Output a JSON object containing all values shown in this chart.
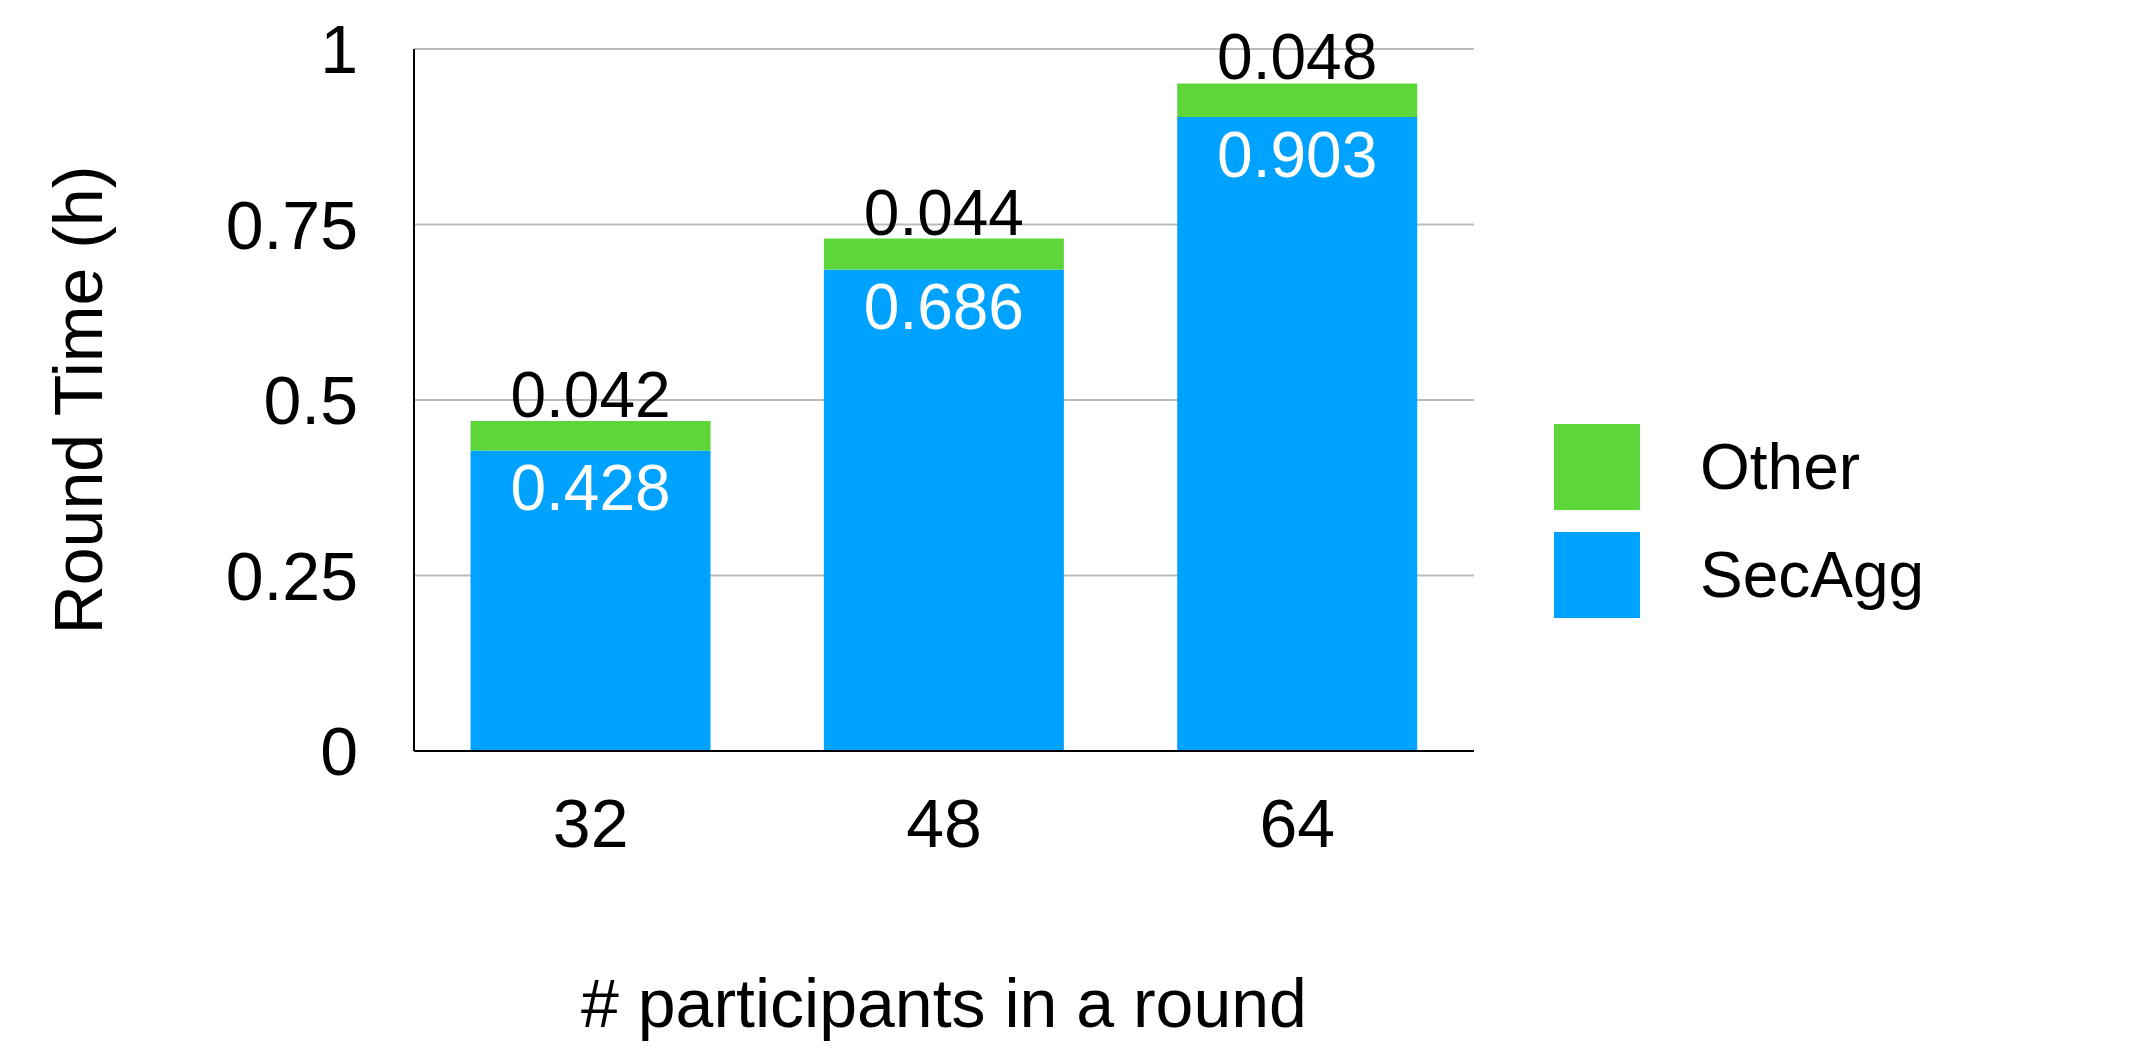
{
  "chart_data": {
    "type": "bar",
    "xlabel": "# participants in a round",
    "ylabel": "Round Time (h)",
    "categories": [
      "32",
      "48",
      "64"
    ],
    "stacked": true,
    "series": [
      {
        "name": "SecAgg",
        "color": "#00a2ff",
        "values": [
          0.428,
          0.686,
          0.903
        ]
      },
      {
        "name": "Other",
        "color": "#5dd63a",
        "values": [
          0.042,
          0.044,
          0.048
        ]
      }
    ],
    "ylim": [
      0,
      1
    ],
    "yticks": [
      0,
      0.25,
      0.5,
      0.75,
      1
    ],
    "grid": "y",
    "legend": "right",
    "data_labels": true
  }
}
